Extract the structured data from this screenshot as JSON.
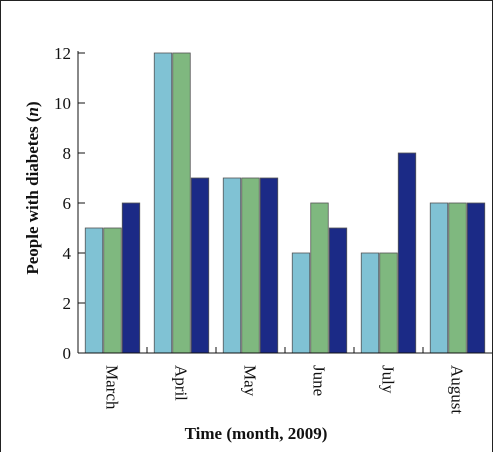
{
  "chart_data": {
    "type": "bar",
    "categories": [
      "March",
      "April",
      "May",
      "June",
      "July",
      "August"
    ],
    "series": [
      {
        "values": [
          5,
          12,
          7,
          4,
          4,
          6
        ],
        "color": "#80c2d4"
      },
      {
        "values": [
          5,
          12,
          7,
          6,
          4,
          6
        ],
        "color": "#7fb87f"
      },
      {
        "values": [
          6,
          7,
          7,
          5,
          8,
          6
        ],
        "color": "#1b2a86"
      }
    ],
    "ylim": [
      0,
      12
    ],
    "yticks": [
      "0",
      "2",
      "4",
      "6",
      "8",
      "10",
      "12"
    ],
    "xlabel": "Time (month, 2009)",
    "ylabel_main": "People with diabetes (",
    "ylabel_var": "n",
    "ylabel_end": ")",
    "grid": false
  }
}
